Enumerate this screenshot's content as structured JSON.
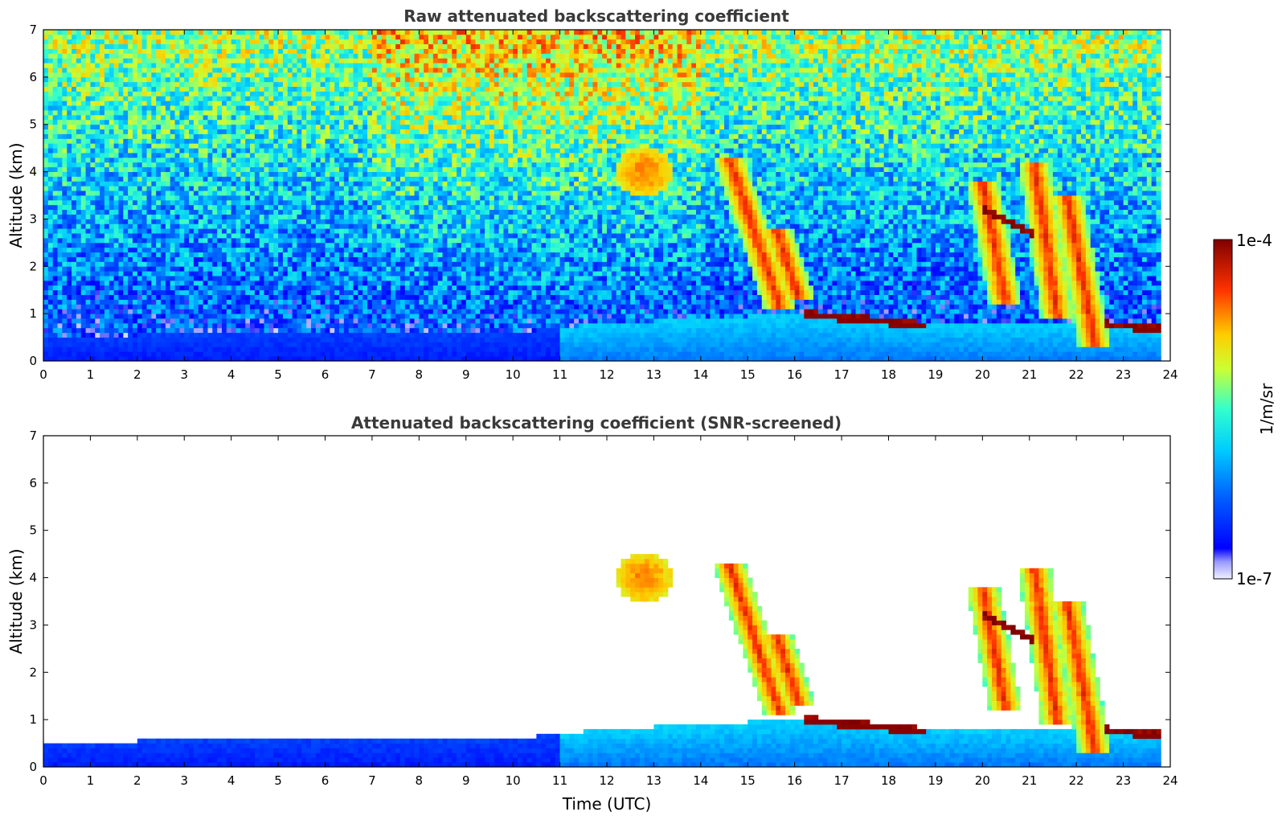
{
  "chart_data": [
    {
      "type": "heatmap",
      "title": "Raw attenuated backscattering coefficient",
      "xlabel": "",
      "ylabel": "Altitude (km)",
      "xlim": [
        0,
        24
      ],
      "ylim": [
        0,
        7
      ],
      "xticks": [
        "0",
        "1",
        "2",
        "3",
        "4",
        "5",
        "6",
        "7",
        "8",
        "9",
        "10",
        "11",
        "12",
        "13",
        "14",
        "15",
        "16",
        "17",
        "18",
        "19",
        "20",
        "21",
        "22",
        "23",
        "24"
      ],
      "yticks": [
        "0",
        "1",
        "2",
        "3",
        "4",
        "5",
        "6",
        "7"
      ],
      "grid": false,
      "screened": false,
      "features": {
        "boundary_layer_top_km": [
          [
            0,
            0.5
          ],
          [
            2,
            0.55
          ],
          [
            4,
            0.6
          ],
          [
            6,
            0.6
          ],
          [
            8,
            0.55
          ],
          [
            10,
            0.6
          ],
          [
            12,
            0.8
          ],
          [
            14,
            0.9
          ],
          [
            16,
            1.0
          ],
          [
            17,
            0.95
          ],
          [
            18,
            0.85
          ],
          [
            19,
            0.82
          ],
          [
            20,
            0.78
          ],
          [
            21,
            0.8
          ],
          [
            22,
            0.75
          ],
          [
            23.8,
            0.72
          ]
        ],
        "cloud_layers": [
          {
            "t_start": 16.2,
            "t_end": 18.8,
            "alt_start_km": 1.0,
            "alt_end_km": 0.75
          },
          {
            "t_start": 22.6,
            "t_end": 23.8,
            "alt_start_km": 0.78,
            "alt_end_km": 0.68
          },
          {
            "t_start": 20.0,
            "t_end": 21.1,
            "alt_start_km": 3.2,
            "alt_end_km": 2.7
          }
        ],
        "precipitation_streaks": [
          {
            "t_top": 14.6,
            "alt_top_km": 4.3,
            "t_bottom": 15.7,
            "alt_bottom_km": 1.1
          },
          {
            "t_top": 15.6,
            "alt_top_km": 2.8,
            "t_bottom": 16.1,
            "alt_bottom_km": 1.3
          },
          {
            "t_top": 20.0,
            "alt_top_km": 3.8,
            "t_bottom": 20.5,
            "alt_bottom_km": 1.2
          },
          {
            "t_top": 21.1,
            "alt_top_km": 4.2,
            "t_bottom": 21.6,
            "alt_bottom_km": 0.9
          },
          {
            "t_top": 21.8,
            "alt_top_km": 3.5,
            "t_bottom": 22.4,
            "alt_bottom_km": 0.3
          }
        ],
        "aerosol_plume": {
          "t_center": 12.8,
          "alt_center_km": 4.0
        }
      }
    },
    {
      "type": "heatmap",
      "title": "Attenuated backscattering coefficient (SNR-screened)",
      "xlabel": "Time (UTC)",
      "ylabel": "Altitude (km)",
      "xlim": [
        0,
        24
      ],
      "ylim": [
        0,
        7
      ],
      "xticks": [
        "0",
        "1",
        "2",
        "3",
        "4",
        "5",
        "6",
        "7",
        "8",
        "9",
        "10",
        "11",
        "12",
        "13",
        "14",
        "15",
        "16",
        "17",
        "18",
        "19",
        "20",
        "21",
        "22",
        "23",
        "24"
      ],
      "yticks": [
        "0",
        "1",
        "2",
        "3",
        "4",
        "5",
        "6",
        "7"
      ],
      "grid": false,
      "screened": true
    }
  ],
  "colorbar": {
    "label": "1/m/sr",
    "max_label": "1e-4",
    "min_label": "1e-7",
    "colormap": "jet",
    "min": 1e-07,
    "max": 0.0001,
    "scale": "log"
  }
}
